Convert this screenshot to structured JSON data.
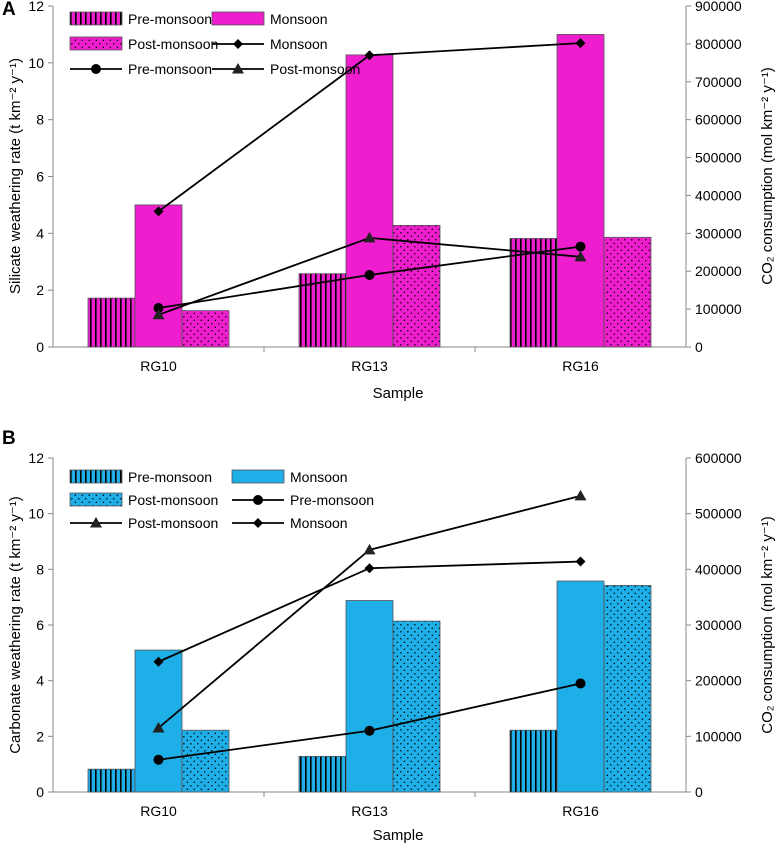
{
  "chart_data": [
    {
      "panel": "A",
      "type": "bar+line",
      "xlabel": "Sample",
      "ylabel": "Silicate weathering rate (t km⁻² y⁻¹)",
      "y2label": "CO₂ consumption (mol km⁻² y⁻¹)",
      "categories": [
        "RG10",
        "RG13",
        "RG16"
      ],
      "ylim": [
        0,
        12
      ],
      "yticks": [
        "0",
        "2",
        "4",
        "6",
        "8",
        "10",
        "12"
      ],
      "y2lim": [
        0,
        900000
      ],
      "y2ticks": [
        "0",
        "100000",
        "200000",
        "300000",
        "400000",
        "500000",
        "600000",
        "700000",
        "800000",
        "900000"
      ],
      "bar_color": "#ee1ecf",
      "bar_series": [
        {
          "name": "Pre-monsoon",
          "pattern": "vstripe",
          "values": [
            1.72,
            2.58,
            3.82
          ]
        },
        {
          "name": "Monsoon",
          "pattern": "solid",
          "values": [
            5.0,
            10.28,
            11.0
          ]
        },
        {
          "name": "Post-monsoon",
          "pattern": "dots",
          "values": [
            1.28,
            4.28,
            3.86
          ]
        }
      ],
      "line_series": [
        {
          "name": "Monsoon",
          "marker": "diamond",
          "values": [
            358000,
            770000,
            802000
          ]
        },
        {
          "name": "Pre-monsoon",
          "marker": "circle",
          "values": [
            103000,
            190000,
            265000
          ]
        },
        {
          "name": "Post-monsoon",
          "marker": "triangle",
          "values": [
            85000,
            288000,
            238000
          ]
        }
      ],
      "legend": [
        {
          "label": "Pre-monsoon",
          "kind": "bar",
          "pattern": "vstripe"
        },
        {
          "label": "Monsoon",
          "kind": "bar",
          "pattern": "solid"
        },
        {
          "label": "Post-monsoon",
          "kind": "bar",
          "pattern": "dots"
        },
        {
          "label": "Monsoon",
          "kind": "line",
          "marker": "diamond"
        },
        {
          "label": "Pre-monsoon",
          "kind": "line",
          "marker": "circle"
        },
        {
          "label": "Post-monsoon",
          "kind": "line",
          "marker": "triangle"
        }
      ]
    },
    {
      "panel": "B",
      "type": "bar+line",
      "xlabel": "Sample",
      "ylabel": "Carbonate weathering rate (t km⁻² y⁻¹)",
      "y2label": "CO₂ consumption (mol km⁻² y⁻¹)",
      "categories": [
        "RG10",
        "RG13",
        "RG16"
      ],
      "ylim": [
        0,
        12
      ],
      "yticks": [
        "0",
        "2",
        "4",
        "6",
        "8",
        "10",
        "12"
      ],
      "y2lim": [
        0,
        600000
      ],
      "y2ticks": [
        "0",
        "100000",
        "200000",
        "300000",
        "400000",
        "500000",
        "600000"
      ],
      "bar_color": "#1eaee8",
      "bar_series": [
        {
          "name": "Pre-monsoon",
          "pattern": "vstripe",
          "values": [
            0.82,
            1.28,
            2.22
          ]
        },
        {
          "name": "Monsoon",
          "pattern": "solid",
          "values": [
            5.1,
            6.88,
            7.58
          ]
        },
        {
          "name": "Post-monsoon",
          "pattern": "dots",
          "values": [
            2.22,
            6.14,
            7.42
          ]
        }
      ],
      "line_series": [
        {
          "name": "Pre-monsoon",
          "marker": "circle",
          "values": [
            58000,
            110000,
            195000
          ]
        },
        {
          "name": "Post-monsoon",
          "marker": "triangle",
          "values": [
            115000,
            435000,
            532000
          ]
        },
        {
          "name": "Monsoon",
          "marker": "diamond",
          "values": [
            234000,
            402000,
            414000
          ]
        }
      ],
      "legend": [
        {
          "label": "Pre-monsoon",
          "kind": "bar",
          "pattern": "vstripe"
        },
        {
          "label": "Monsoon",
          "kind": "bar",
          "pattern": "solid"
        },
        {
          "label": "Post-monsoon",
          "kind": "bar",
          "pattern": "dots"
        },
        {
          "label": "Pre-monsoon",
          "kind": "line",
          "marker": "circle"
        },
        {
          "label": "Post-monsoon",
          "kind": "line",
          "marker": "triangle"
        },
        {
          "label": "Monsoon",
          "kind": "line",
          "marker": "diamond"
        }
      ]
    }
  ]
}
